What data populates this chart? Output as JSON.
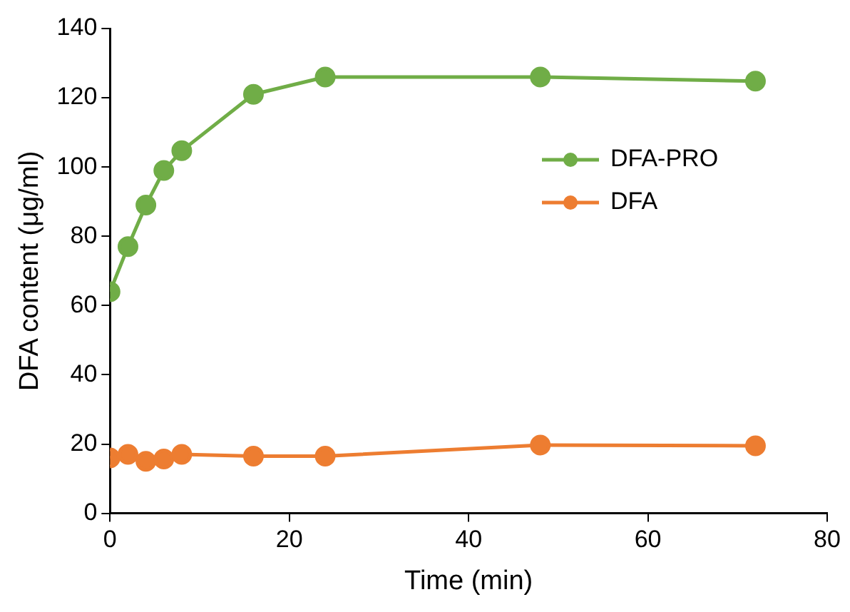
{
  "chart_data": {
    "type": "line",
    "xlabel": "Time (min)",
    "ylabel": "DFA content (μg/ml)",
    "x": [
      0,
      2,
      4,
      6,
      8,
      16,
      24,
      48,
      72
    ],
    "series": [
      {
        "name": "DFA-PRO",
        "color": "#70ad47",
        "values": [
          64,
          77,
          89,
          99,
          104.7,
          121,
          126,
          126,
          124.8
        ]
      },
      {
        "name": "DFA",
        "color": "#ed7d31",
        "values": [
          16,
          17,
          15,
          15.7,
          17,
          16.5,
          16.5,
          19.7,
          19.5
        ]
      }
    ],
    "xlim": [
      0,
      80
    ],
    "xticks": [
      0,
      20,
      40,
      60,
      80
    ],
    "ylim": [
      0,
      140
    ],
    "yticks": [
      0,
      20,
      40,
      60,
      80,
      100,
      120,
      140
    ],
    "grid": false,
    "legend": "right",
    "marker": "circle",
    "line_style": "solid"
  }
}
